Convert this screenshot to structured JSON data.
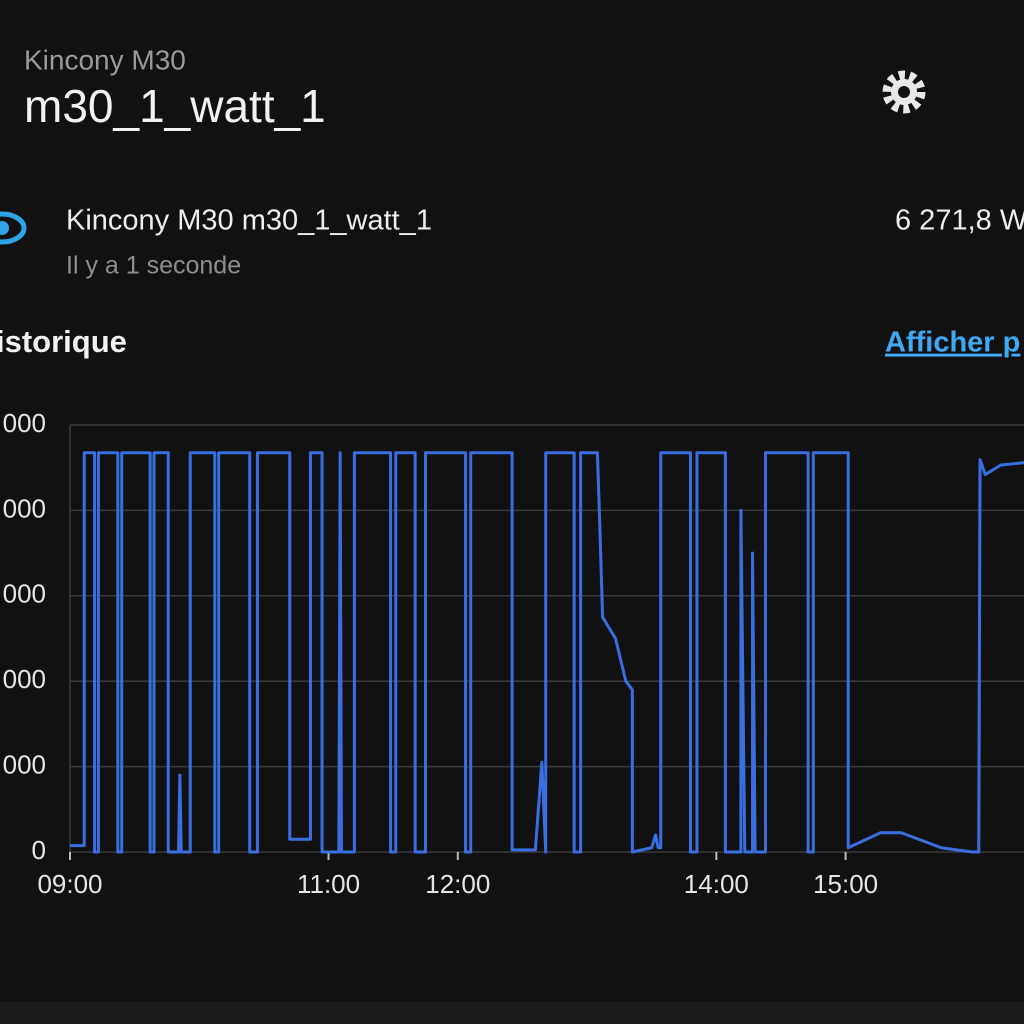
{
  "header": {
    "subtitle": "Kincony M30",
    "title": "m30_1_watt_1"
  },
  "entity": {
    "name": "Kincony M30 m30_1_watt_1",
    "time": "Il y a 1 seconde",
    "state": "6 271,8 W"
  },
  "history": {
    "title": "istorique",
    "link": "Afficher p"
  },
  "chart_data": {
    "type": "line",
    "color": "#3a6ee0",
    "grid": true,
    "xlim": [
      9,
      16.38
    ],
    "ylim": [
      0,
      10000
    ],
    "xticks": [
      {
        "value": 9,
        "label": "09:00"
      },
      {
        "value": 11,
        "label": "11:00"
      },
      {
        "value": 12,
        "label": "12:00"
      },
      {
        "value": 14,
        "label": "14:00"
      },
      {
        "value": 15,
        "label": "15:00"
      }
    ],
    "yticks": [
      {
        "value": 10000,
        "label": "000"
      },
      {
        "value": 8000,
        "label": "000"
      },
      {
        "value": 6000,
        "label": "000"
      },
      {
        "value": 4000,
        "label": "000"
      },
      {
        "value": 2000,
        "label": "000"
      },
      0
    ],
    "x": [
      9.0,
      9.11,
      9.11,
      9.19,
      9.19,
      9.22,
      9.22,
      9.37,
      9.37,
      9.4,
      9.4,
      9.62,
      9.62,
      9.65,
      9.65,
      9.76,
      9.76,
      9.84,
      9.85,
      9.86,
      9.93,
      9.93,
      10.12,
      10.12,
      10.15,
      10.15,
      10.39,
      10.39,
      10.45,
      10.45,
      10.7,
      10.7,
      10.86,
      10.86,
      10.95,
      10.95,
      11.08,
      11.09,
      11.1,
      11.2,
      11.2,
      11.48,
      11.48,
      11.52,
      11.52,
      11.67,
      11.67,
      11.75,
      11.75,
      12.06,
      12.06,
      12.1,
      12.1,
      12.42,
      12.42,
      12.6,
      12.65,
      12.68,
      12.68,
      12.9,
      12.9,
      12.95,
      12.95,
      13.08,
      13.1,
      13.12,
      13.22,
      13.3,
      13.35,
      13.35,
      13.5,
      13.53,
      13.55,
      13.57,
      13.57,
      13.8,
      13.8,
      13.85,
      13.85,
      14.07,
      14.07,
      14.19,
      14.19,
      14.22,
      14.28,
      14.28,
      14.3,
      14.38,
      14.38,
      14.71,
      14.71,
      14.75,
      14.75,
      15.02,
      15.02,
      15.27,
      15.43,
      15.74,
      15.98,
      16.03,
      16.04,
      16.08,
      16.2,
      16.38
    ],
    "values": [
      150,
      150,
      9350,
      9350,
      0,
      0,
      9350,
      9350,
      0,
      0,
      9350,
      9350,
      0,
      0,
      9350,
      9350,
      0,
      0,
      1800,
      0,
      0,
      9350,
      9350,
      0,
      0,
      9350,
      9350,
      0,
      0,
      9350,
      9350,
      300,
      300,
      9350,
      9350,
      0,
      0,
      9350,
      0,
      0,
      9350,
      9350,
      0,
      0,
      9350,
      9350,
      0,
      0,
      9350,
      9350,
      0,
      0,
      9350,
      9350,
      50,
      50,
      2100,
      0,
      9350,
      9350,
      0,
      0,
      9350,
      9350,
      7500,
      5500,
      5000,
      4000,
      3800,
      0,
      100,
      400,
      100,
      100,
      9350,
      9350,
      0,
      0,
      9350,
      9350,
      0,
      0,
      8000,
      0,
      0,
      7000,
      0,
      0,
      9350,
      9350,
      0,
      0,
      9350,
      9350,
      100,
      450,
      450,
      100,
      0,
      0,
      9190,
      8840,
      9060,
      9120
    ]
  }
}
